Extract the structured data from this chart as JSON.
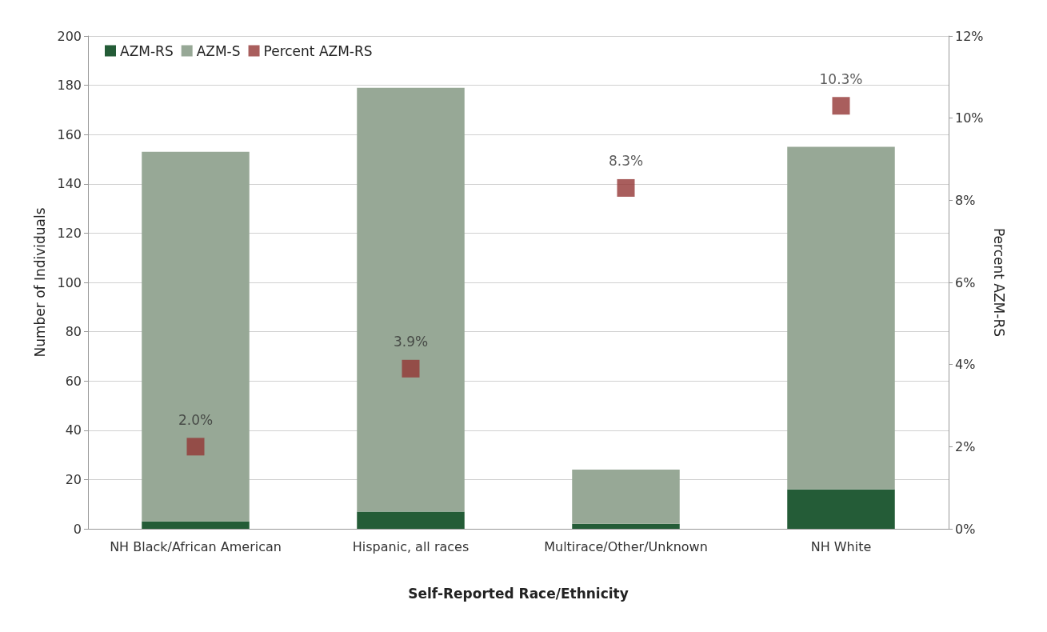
{
  "chart_data": {
    "type": "bar",
    "stacked": true,
    "xlabel": "Self-Reported Race/Ethnicity",
    "ylabel": "Number of Individuals",
    "y2label": "Percent AZM-RS",
    "categories": [
      "NH Black/African American",
      "Hispanic, all races",
      "Multirace/Other/Unknown",
      "NH White"
    ],
    "series": [
      {
        "name": "AZM-RS",
        "color": "#245c37",
        "values": [
          3,
          7,
          2,
          16
        ]
      },
      {
        "name": "AZM-S",
        "color": "#97a896",
        "values": [
          150,
          172,
          22,
          139
        ]
      },
      {
        "name": "Percent AZM-RS",
        "type": "scatter",
        "axis": "y2",
        "marker": "square",
        "color": "#943634",
        "values": [
          2.0,
          3.9,
          8.3,
          10.3
        ],
        "value_labels": [
          "2.0%",
          "3.9%",
          "8.3%",
          "10.3%"
        ]
      }
    ],
    "ylim": [
      0,
      200
    ],
    "yticks": [
      0,
      20,
      40,
      60,
      80,
      100,
      120,
      140,
      160,
      180,
      200
    ],
    "y2lim": [
      0,
      12
    ],
    "y2ticks": [
      {
        "value": 0,
        "label": "0%"
      },
      {
        "value": 2,
        "label": "2%"
      },
      {
        "value": 4,
        "label": "4%"
      },
      {
        "value": 6,
        "label": "6%"
      },
      {
        "value": 8,
        "label": "8%"
      },
      {
        "value": 10,
        "label": "10%"
      },
      {
        "value": 12,
        "label": "12%"
      }
    ],
    "grid": "y",
    "legend": "top left"
  }
}
